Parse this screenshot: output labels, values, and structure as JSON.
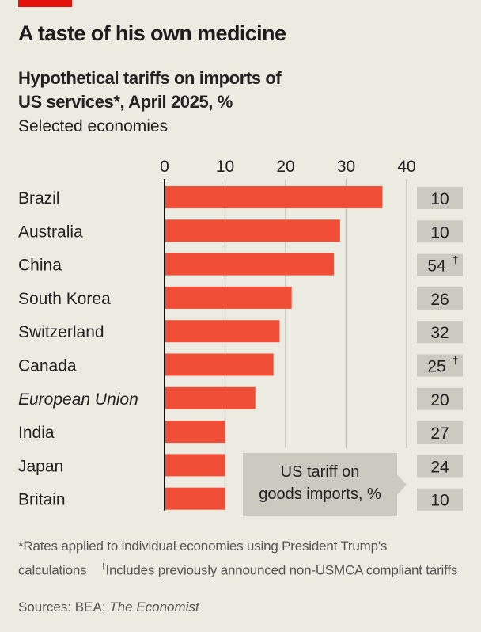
{
  "header": {
    "title": "A taste of his own medicine",
    "subtitle": "Hypothetical tariffs on imports of US services*, April 2025, %",
    "subtitle_line1": "Hypothetical tariffs on imports of",
    "subtitle_line2": "US services*, April 2025, %",
    "note": "Selected economies"
  },
  "colors": {
    "bar": "#F04E37",
    "tag": "#E3120B",
    "background": "#ECEBE2",
    "value_box": "#CBCAC1"
  },
  "callout": {
    "line1": "US tariff on",
    "line2": "goods imports, %"
  },
  "footnotes": {
    "star": "*Rates applied to individual economies using President Trump's calculations",
    "dagger_mark": "†",
    "dagger": "Includes previously announced non-USMCA compliant tariffs",
    "sources_prefix": "Sources: BEA; ",
    "sources_italic": "The Economist"
  },
  "chart_data": {
    "type": "bar",
    "orientation": "horizontal",
    "title": "A taste of his own medicine",
    "subtitle": "Hypothetical tariffs on imports of US services*, April 2025, %",
    "xlabel": "",
    "ylabel": "",
    "xlim": [
      0,
      40
    ],
    "ticks": [
      0,
      10,
      20,
      30,
      40
    ],
    "tick_labels": [
      "0",
      "10",
      "20",
      "30",
      "40"
    ],
    "grid": true,
    "categories": [
      "Brazil",
      "Australia",
      "China",
      "South Korea",
      "Switzerland",
      "Canada",
      "European Union",
      "India",
      "Japan",
      "Britain"
    ],
    "italic_categories": [
      "European Union"
    ],
    "series": [
      {
        "name": "Hypothetical tariff on imports of US services, %",
        "values": [
          36,
          29,
          28,
          21,
          19,
          18,
          15,
          10,
          10,
          10
        ]
      }
    ],
    "side_values": {
      "name": "US tariff on goods imports, %",
      "values": [
        "10",
        "10",
        "54",
        "26",
        "32",
        "25",
        "20",
        "27",
        "24",
        "10"
      ],
      "dagger": [
        false,
        false,
        true,
        false,
        false,
        true,
        false,
        false,
        false,
        false
      ]
    }
  }
}
